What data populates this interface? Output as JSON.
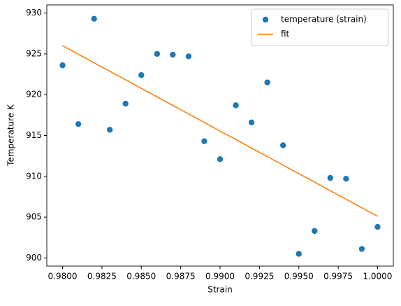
{
  "chart_data": {
    "type": "scatter",
    "xlabel": "Strain",
    "ylabel": "Temperature K",
    "series": [
      {
        "name": "temperature (strain)",
        "color": "#1f77b4",
        "kind": "scatter",
        "x": [
          0.98,
          0.981,
          0.982,
          0.983,
          0.984,
          0.985,
          0.986,
          0.987,
          0.988,
          0.989,
          0.99,
          0.991,
          0.992,
          0.993,
          0.994,
          0.995,
          0.996,
          0.997,
          0.998,
          0.999,
          1.0
        ],
        "values": [
          923.6,
          916.4,
          929.3,
          915.7,
          918.9,
          922.4,
          925.0,
          924.9,
          924.7,
          914.3,
          912.1,
          918.7,
          916.6,
          921.5,
          913.8,
          900.5,
          903.3,
          909.8,
          909.7,
          901.1,
          903.8
        ]
      },
      {
        "name": "fit",
        "color": "#ff7f0e",
        "kind": "line",
        "x": [
          0.98,
          1.0
        ],
        "values": [
          926.0,
          905.1
        ]
      }
    ],
    "xlim": [
      0.979,
      1.001
    ],
    "xticks": [
      {
        "value": 0.98,
        "label": "0.9800"
      },
      {
        "value": 0.9825,
        "label": "0.9825"
      },
      {
        "value": 0.985,
        "label": "0.9850"
      },
      {
        "value": 0.9875,
        "label": "0.9875"
      },
      {
        "value": 0.99,
        "label": "0.9900"
      },
      {
        "value": 0.9925,
        "label": "0.9925"
      },
      {
        "value": 0.995,
        "label": "0.9950"
      },
      {
        "value": 0.9975,
        "label": "0.9975"
      },
      {
        "value": 1.0,
        "label": "1.0000"
      }
    ],
    "ylim": [
      899,
      931
    ],
    "yticks": [
      900,
      905,
      910,
      915,
      920,
      925,
      930
    ],
    "grid": false,
    "legend": "upper right"
  }
}
